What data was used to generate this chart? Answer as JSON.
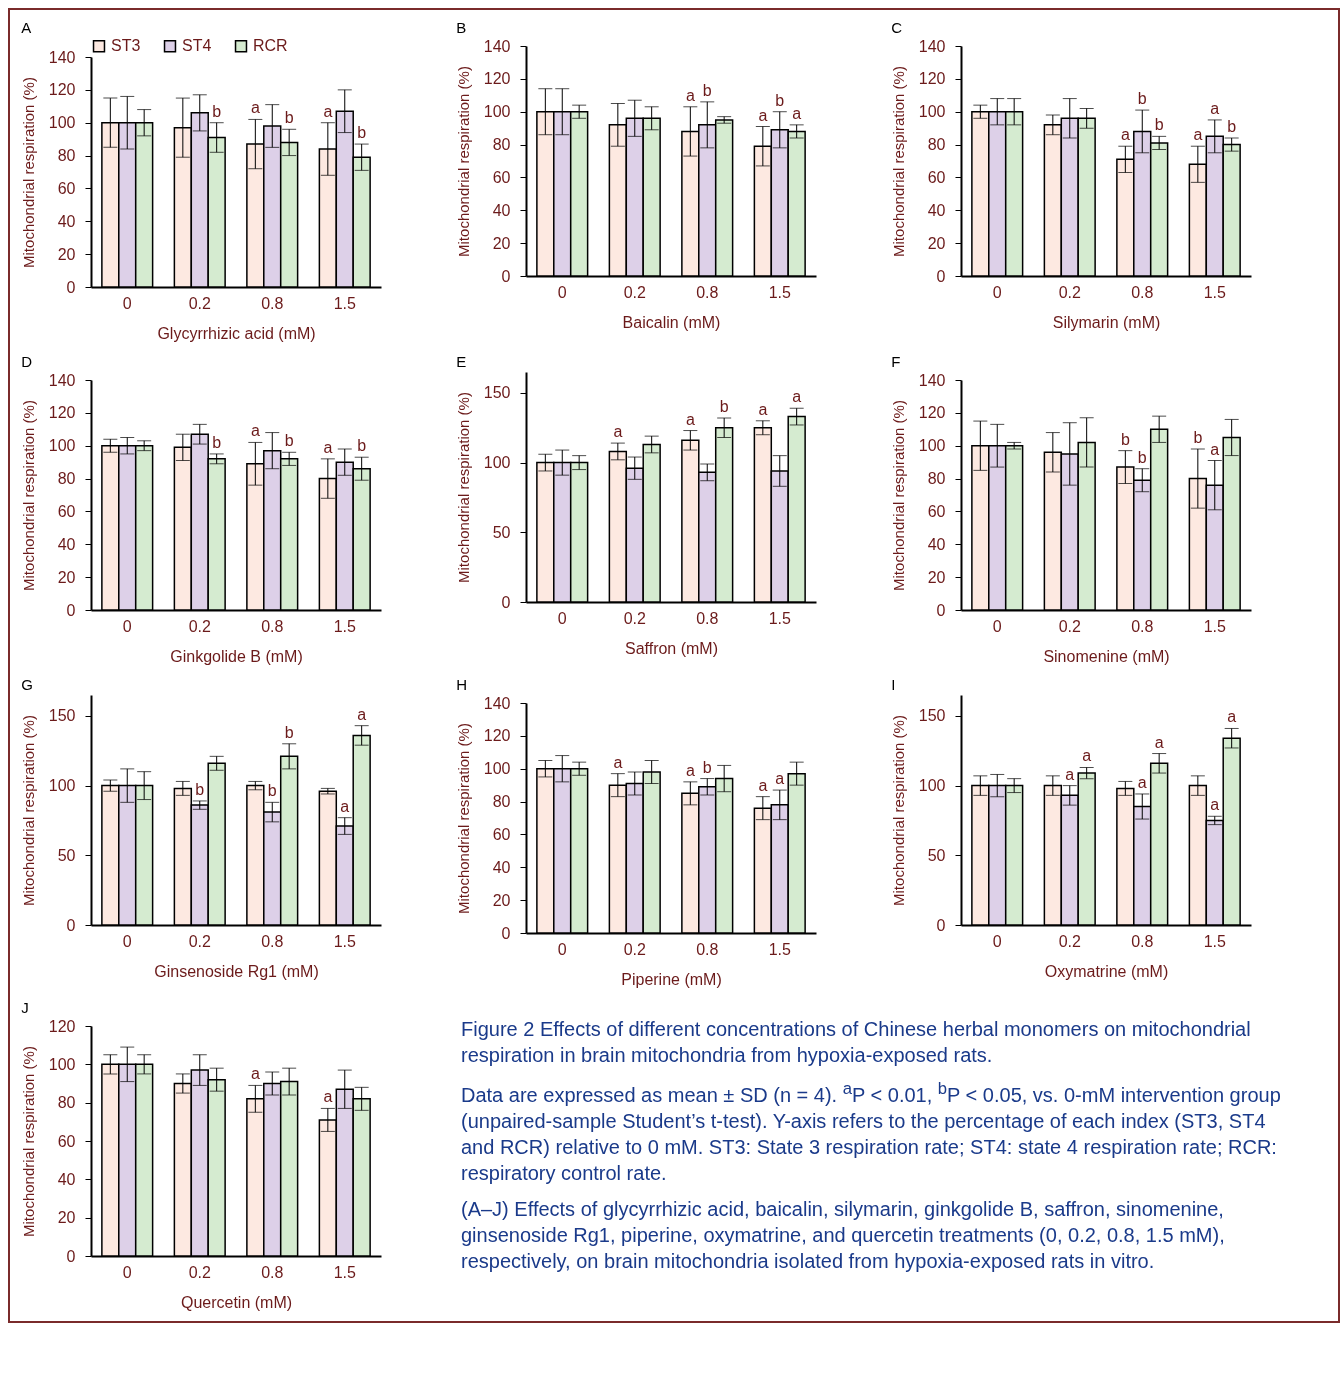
{
  "chart_data": [
    {
      "type": "bar",
      "title": "A",
      "xlabel": "Glycyrrhizic acid (mM)",
      "ylabel": "Mitochondrial respiration (%)",
      "categories": [
        "0",
        "0.2",
        "0.8",
        "1.5"
      ],
      "ylim": [
        0,
        140
      ],
      "yticks": [
        0,
        20,
        40,
        60,
        80,
        100,
        120,
        140
      ],
      "legend": "top",
      "series": [
        {
          "name": "ST3",
          "color": "#fde9e1",
          "values": [
            100,
            97,
            87,
            84
          ],
          "errors": [
            15,
            18,
            15,
            16
          ],
          "value_labels": [
            null,
            null,
            "a",
            "a"
          ]
        },
        {
          "name": "ST4",
          "color": "#ddd0e8",
          "values": [
            100,
            106,
            98,
            107
          ],
          "errors": [
            16,
            11,
            13,
            13
          ]
        },
        {
          "name": "RCR",
          "color": "#d5ebd0",
          "values": [
            100,
            91,
            88,
            79
          ],
          "errors": [
            8,
            9,
            8,
            8
          ],
          "value_labels": [
            null,
            "b",
            "b",
            "b"
          ]
        }
      ]
    },
    {
      "type": "bar",
      "title": "B",
      "xlabel": "Baicalin (mM)",
      "ylabel": "Mitochondrial respiration (%)",
      "categories": [
        "0",
        "0.2",
        "0.8",
        "1.5"
      ],
      "ylim": [
        0,
        140
      ],
      "yticks": [
        0,
        20,
        40,
        60,
        80,
        100,
        120,
        140
      ],
      "series": [
        {
          "color": "#fde9e1",
          "values": [
            100,
            92,
            88,
            79
          ],
          "errors": [
            14,
            13,
            15,
            12
          ],
          "value_labels": [
            null,
            null,
            "a",
            "a"
          ]
        },
        {
          "color": "#ddd0e8",
          "values": [
            100,
            96,
            92,
            89
          ],
          "errors": [
            14,
            11,
            14,
            11
          ],
          "value_labels": [
            null,
            null,
            "b",
            "b"
          ]
        },
        {
          "color": "#d5ebd0",
          "values": [
            100,
            96,
            95,
            88
          ],
          "errors": [
            4,
            7,
            2,
            4
          ],
          "value_labels": [
            null,
            null,
            null,
            "a"
          ]
        }
      ]
    },
    {
      "type": "bar",
      "title": "C",
      "xlabel": "Silymarin (mM)",
      "ylabel": "Mitochondrial respiration (%)",
      "categories": [
        "0",
        "0.2",
        "0.8",
        "1.5"
      ],
      "ylim": [
        0,
        140
      ],
      "yticks": [
        0,
        20,
        40,
        60,
        80,
        100,
        120,
        140
      ],
      "series": [
        {
          "color": "#fde9e1",
          "values": [
            100,
            92,
            71,
            68
          ],
          "errors": [
            4,
            6,
            8,
            11
          ],
          "value_labels": [
            null,
            null,
            "a",
            "a"
          ]
        },
        {
          "color": "#ddd0e8",
          "values": [
            100,
            96,
            88,
            85
          ],
          "errors": [
            8,
            12,
            13,
            10
          ],
          "value_labels": [
            null,
            null,
            "b",
            "a"
          ]
        },
        {
          "color": "#d5ebd0",
          "values": [
            100,
            96,
            81,
            80
          ],
          "errors": [
            8,
            6,
            4,
            4
          ],
          "value_labels": [
            null,
            null,
            "b",
            "b"
          ]
        }
      ]
    },
    {
      "type": "bar",
      "title": "D",
      "xlabel": "Ginkgolide B (mM)",
      "ylabel": "Mitochondrial respiration (%)",
      "categories": [
        "0",
        "0.2",
        "0.8",
        "1.5"
      ],
      "ylim": [
        0,
        140
      ],
      "yticks": [
        0,
        20,
        40,
        60,
        80,
        100,
        120,
        140
      ],
      "series": [
        {
          "color": "#fde9e1",
          "values": [
            100,
            99,
            89,
            80
          ],
          "errors": [
            4,
            8,
            13,
            12
          ],
          "value_labels": [
            null,
            null,
            "a",
            "a"
          ]
        },
        {
          "color": "#ddd0e8",
          "values": [
            100,
            107,
            97,
            90
          ],
          "errors": [
            5,
            6,
            11,
            8
          ]
        },
        {
          "color": "#d5ebd0",
          "values": [
            100,
            92,
            92,
            86
          ],
          "errors": [
            3,
            3,
            4,
            7
          ],
          "value_labels": [
            null,
            "b",
            "b",
            "b"
          ]
        }
      ]
    },
    {
      "type": "bar",
      "title": "E",
      "xlabel": "Saffron (mM)",
      "ylabel": "Mitochondrial respiration (%)",
      "categories": [
        "0",
        "0.2",
        "0.8",
        "1.5"
      ],
      "ylim": [
        0,
        165
      ],
      "yticks": [
        0,
        50,
        100,
        150
      ],
      "series": [
        {
          "color": "#fde9e1",
          "values": [
            100,
            108,
            116,
            125
          ],
          "errors": [
            6,
            6,
            7,
            5
          ],
          "value_labels": [
            null,
            "a",
            "a",
            "a"
          ]
        },
        {
          "color": "#ddd0e8",
          "values": [
            100,
            96,
            93,
            94
          ],
          "errors": [
            9,
            8,
            6,
            11
          ]
        },
        {
          "color": "#d5ebd0",
          "values": [
            100,
            113,
            125,
            133
          ],
          "errors": [
            5,
            6,
            7,
            6
          ],
          "value_labels": [
            null,
            null,
            "b",
            "a"
          ]
        }
      ]
    },
    {
      "type": "bar",
      "title": "F",
      "xlabel": "Sinomenine (mM)",
      "ylabel": "Mitochondrial respiration (%)",
      "categories": [
        "0",
        "0.2",
        "0.8",
        "1.5"
      ],
      "ylim": [
        0,
        140
      ],
      "yticks": [
        0,
        20,
        40,
        60,
        80,
        100,
        120,
        140
      ],
      "series": [
        {
          "color": "#fde9e1",
          "values": [
            100,
            96,
            87,
            80
          ],
          "errors": [
            15,
            12,
            10,
            18
          ],
          "value_labels": [
            null,
            null,
            "b",
            "b"
          ]
        },
        {
          "color": "#ddd0e8",
          "values": [
            100,
            95,
            79,
            76
          ],
          "errors": [
            13,
            19,
            7,
            15
          ],
          "value_labels": [
            null,
            null,
            "b",
            "a"
          ]
        },
        {
          "color": "#d5ebd0",
          "values": [
            100,
            102,
            110,
            105
          ],
          "errors": [
            2,
            15,
            8,
            11
          ]
        }
      ]
    },
    {
      "type": "bar",
      "title": "G",
      "xlabel": "Ginsenoside Rg1 (mM)",
      "ylabel": "Mitochondrial respiration (%)",
      "categories": [
        "0",
        "0.2",
        "0.8",
        "1.5"
      ],
      "ylim": [
        0,
        165
      ],
      "yticks": [
        0,
        50,
        100,
        150
      ],
      "series": [
        {
          "color": "#fde9e1",
          "values": [
            100,
            98,
            100,
            96
          ],
          "errors": [
            4,
            5,
            3,
            2
          ]
        },
        {
          "color": "#ddd0e8",
          "values": [
            100,
            86,
            81,
            71
          ],
          "errors": [
            12,
            3,
            7,
            6
          ],
          "value_labels": [
            null,
            "b",
            "b",
            "a"
          ]
        },
        {
          "color": "#d5ebd0",
          "values": [
            100,
            116,
            121,
            136
          ],
          "errors": [
            10,
            5,
            9,
            7
          ],
          "value_labels": [
            null,
            null,
            "b",
            "a"
          ]
        }
      ]
    },
    {
      "type": "bar",
      "title": "H",
      "xlabel": "Piperine (mM)",
      "ylabel": "Mitochondrial respiration (%)",
      "categories": [
        "0",
        "0.2",
        "0.8",
        "1.5"
      ],
      "ylim": [
        0,
        140
      ],
      "yticks": [
        0,
        20,
        40,
        60,
        80,
        100,
        120,
        140
      ],
      "series": [
        {
          "color": "#fde9e1",
          "values": [
            100,
            90,
            85,
            76
          ],
          "errors": [
            5,
            7,
            7,
            7
          ],
          "value_labels": [
            null,
            "a",
            "a",
            "a"
          ]
        },
        {
          "color": "#ddd0e8",
          "values": [
            100,
            91,
            89,
            78
          ],
          "errors": [
            8,
            7,
            5,
            9
          ],
          "value_labels": [
            null,
            null,
            "b",
            "a"
          ]
        },
        {
          "color": "#d5ebd0",
          "values": [
            100,
            98,
            94,
            97
          ],
          "errors": [
            4,
            7,
            8,
            7
          ]
        }
      ]
    },
    {
      "type": "bar",
      "title": "I",
      "xlabel": "Oxymatrine (mM)",
      "ylabel": "Mitochondrial respiration (%)",
      "categories": [
        "0",
        "0.2",
        "0.8",
        "1.5"
      ],
      "ylim": [
        0,
        165
      ],
      "yticks": [
        0,
        50,
        100,
        150
      ],
      "series": [
        {
          "color": "#fde9e1",
          "values": [
            100,
            100,
            98,
            100
          ],
          "errors": [
            7,
            7,
            5,
            7
          ]
        },
        {
          "color": "#ddd0e8",
          "values": [
            100,
            93,
            85,
            75
          ],
          "errors": [
            8,
            7,
            9,
            3
          ],
          "value_labels": [
            null,
            "a",
            "a",
            "a"
          ]
        },
        {
          "color": "#d5ebd0",
          "values": [
            100,
            109,
            116,
            134
          ],
          "errors": [
            5,
            4,
            7,
            7
          ],
          "value_labels": [
            null,
            "a",
            "a",
            "a"
          ]
        }
      ]
    },
    {
      "type": "bar",
      "title": "J",
      "xlabel": "Quercetin (mM)",
      "ylabel": "Mitochondrial respiration (%)",
      "categories": [
        "0",
        "0.2",
        "0.8",
        "1.5"
      ],
      "ylim": [
        0,
        120
      ],
      "yticks": [
        0,
        20,
        40,
        60,
        80,
        100,
        120
      ],
      "series": [
        {
          "color": "#fde9e1",
          "values": [
            100,
            90,
            82,
            71
          ],
          "errors": [
            5,
            5,
            7,
            6
          ],
          "value_labels": [
            null,
            null,
            "a",
            "a"
          ]
        },
        {
          "color": "#ddd0e8",
          "values": [
            100,
            97,
            90,
            87
          ],
          "errors": [
            9,
            8,
            6,
            10
          ]
        },
        {
          "color": "#d5ebd0",
          "values": [
            100,
            92,
            91,
            82
          ],
          "errors": [
            5,
            6,
            7,
            6
          ]
        }
      ]
    },
    {
      "type": "other",
      "title": "Figure 2    Effects of different concentrations of Chinese herbal monomers on mitochondrial respiration in brain mitochondria from hypoxia-exposed rats.",
      "annotations": [
        "Data are expressed as mean ± SD (n = 4). $^{a}$P < 0.01, $^{b}$P < 0.05, vs. 0-mM intervention group (unpaired-sample Student’s t-test). Y-axis refers to the percentage of each index (ST3, ST4 and RCR) relative to 0 mM. ST3: State 3 respiration rate; ST4: state 4 respiration rate; RCR: respiratory control rate.",
        "(A–J) Effects of glycyrrhizic acid, baicalin, silymarin, ginkgolide B, saffron, sinomenine, ginsenoside Rg1, piperine, oxymatrine, and quercetin treatments (0, 0.2, 0.8, 1.5 mM), respectively, on brain mitochondria isolated from hypoxia-exposed rats in vitro."
      ]
    }
  ]
}
